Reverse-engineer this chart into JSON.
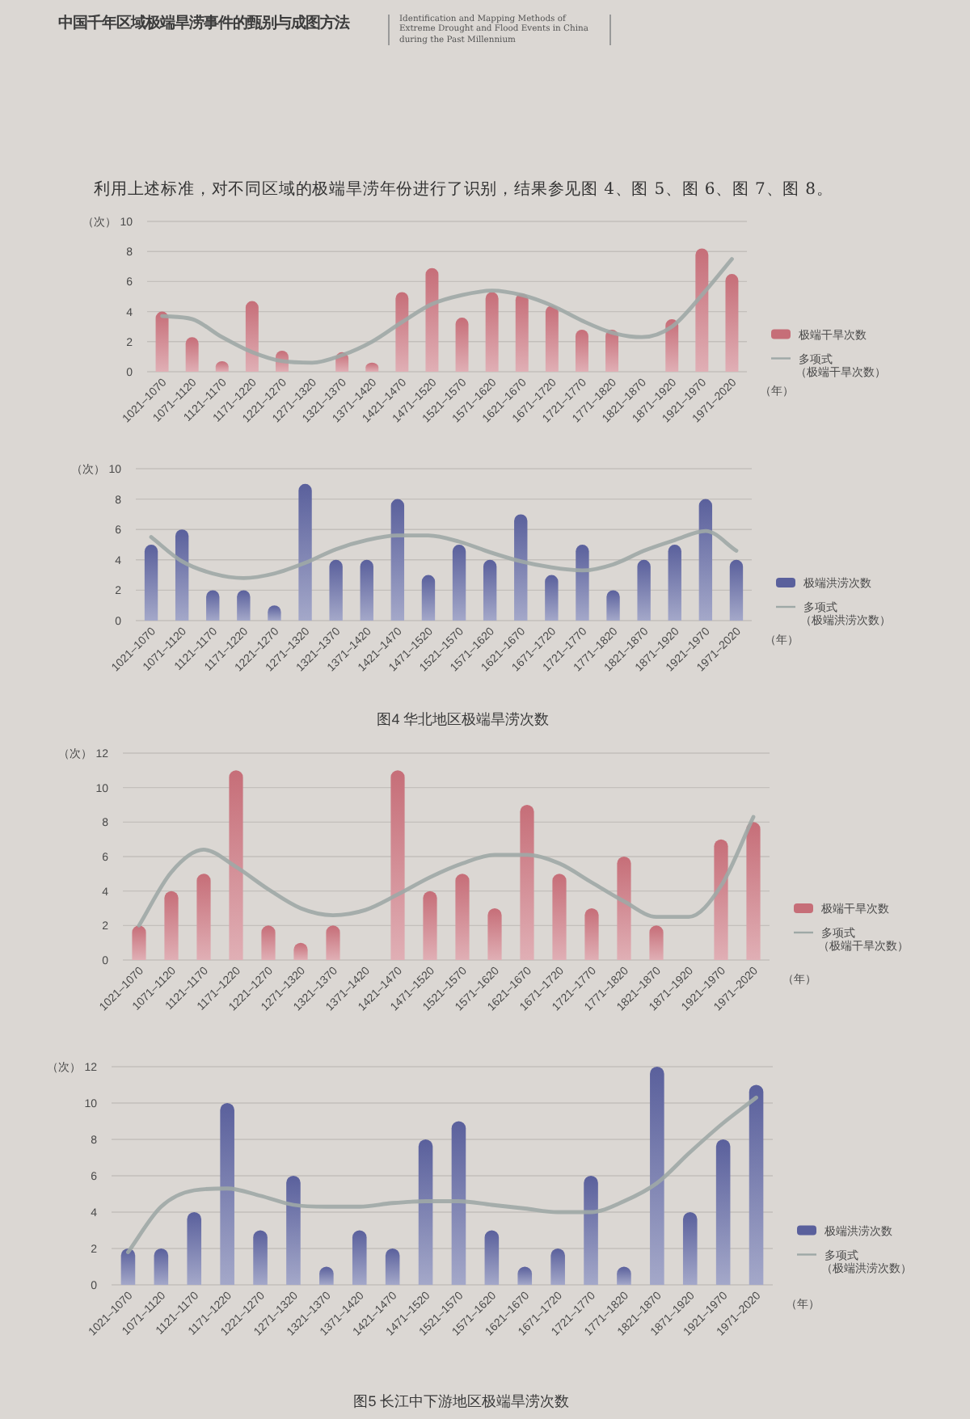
{
  "chart_data": [
    {
      "type": "other",
      "title": "中国千年区域极端旱涝事件的甄别与成图方法",
      "subtitle": "Identification and Mapping Methods of Extreme Drought and Flood Events in China during the Past Millennium",
      "annotations": [
        "利用上述标准，对不同区域的极端旱涝年份进行了识别，结果参见图 4、图 5、图 6、图 7、图 8。"
      ]
    },
    {
      "type": "bar",
      "categories": [
        "1021–1070",
        "1071–1120",
        "1121–1170",
        "1171–1220",
        "1221–1270",
        "1271–1320",
        "1321–1370",
        "1371–1420",
        "1421–1470",
        "1471–1520",
        "1521–1570",
        "1571–1620",
        "1621–1670",
        "1671–1720",
        "1721–1770",
        "1771–1820",
        "1821–1870",
        "1871–1920",
        "1921–1970",
        "1971–2020"
      ],
      "ylim": [
        0,
        10
      ],
      "yticks": [
        0,
        2,
        4,
        6,
        8,
        10
      ],
      "ylabel": "（次）",
      "xlabel": "（年）",
      "grid": "y",
      "legend": "right",
      "series": [
        {
          "name": "极端干旱次数",
          "color": "#c66e78",
          "values": [
            4.0,
            2.3,
            0.7,
            4.7,
            1.4,
            0,
            1.3,
            0.6,
            5.3,
            6.9,
            3.6,
            5.3,
            5.2,
            4.4,
            2.8,
            2.8,
            0,
            3.5,
            8.2,
            6.5
          ]
        },
        {
          "name": "多项式（极端干旱次数）",
          "type": "line",
          "color": "#9ea8a6",
          "values": [
            3.7,
            3.5,
            2.3,
            1.3,
            0.7,
            0.6,
            1.1,
            2.0,
            3.3,
            4.5,
            5.1,
            5.4,
            5.1,
            4.4,
            3.4,
            2.6,
            2.3,
            3.0,
            5.1,
            7.5
          ]
        }
      ]
    },
    {
      "type": "bar",
      "categories": [
        "1021–1070",
        "1071–1120",
        "1121–1170",
        "1171–1220",
        "1221–1270",
        "1271–1320",
        "1321–1370",
        "1371–1420",
        "1421–1470",
        "1471–1520",
        "1521–1570",
        "1571–1620",
        "1621–1670",
        "1671–1720",
        "1721–1770",
        "1771–1820",
        "1821–1870",
        "1871–1920",
        "1921–1970",
        "1971–2020"
      ],
      "ylim": [
        0,
        10
      ],
      "yticks": [
        0,
        2,
        4,
        6,
        8,
        10
      ],
      "ylabel": "（次）",
      "xlabel": "（年）",
      "grid": "y",
      "legend": "right",
      "annotations": [
        "图4 华北地区极端旱涝次数"
      ],
      "series": [
        {
          "name": "极端洪涝次数",
          "color": "#5a609c",
          "values": [
            5,
            6,
            2,
            2,
            1,
            9,
            4,
            4,
            8,
            3,
            5,
            4,
            7,
            3,
            5,
            2,
            4,
            5,
            8,
            4
          ]
        },
        {
          "name": "多项式（极端洪涝次数）",
          "type": "line",
          "color": "#9ea8a6",
          "values": [
            5.5,
            3.9,
            3.1,
            2.8,
            3.1,
            3.8,
            4.7,
            5.3,
            5.6,
            5.6,
            5.2,
            4.5,
            3.9,
            3.5,
            3.3,
            3.7,
            4.6,
            5.3,
            5.9,
            4.6
          ]
        }
      ]
    },
    {
      "type": "bar",
      "categories": [
        "1021–1070",
        "1071–1120",
        "1121–1170",
        "1171–1220",
        "1221–1270",
        "1271–1320",
        "1321–1370",
        "1371–1420",
        "1421–1470",
        "1471–1520",
        "1521–1570",
        "1571–1620",
        "1621–1670",
        "1671–1720",
        "1721–1770",
        "1771–1820",
        "1821–1870",
        "1871–1920",
        "1921–1970",
        "1971–2020"
      ],
      "ylim": [
        0,
        12
      ],
      "yticks": [
        0,
        2,
        4,
        6,
        8,
        10,
        12
      ],
      "ylabel": "（次）",
      "xlabel": "（年）",
      "grid": "y",
      "legend": "right",
      "series": [
        {
          "name": "极端干旱次数",
          "color": "#c66e78",
          "values": [
            2,
            4,
            5,
            11,
            2,
            1,
            2,
            0,
            11,
            4,
            5,
            3,
            9,
            5,
            3,
            6,
            2,
            0,
            7,
            8
          ]
        },
        {
          "name": "多项式（极端干旱次数）",
          "type": "line",
          "color": "#9ea8a6",
          "values": [
            2.0,
            5.1,
            6.4,
            5.4,
            4.1,
            3.0,
            2.6,
            2.9,
            3.8,
            4.8,
            5.6,
            6.1,
            6.1,
            5.6,
            4.5,
            3.4,
            2.5,
            2.5,
            4.3,
            8.3
          ]
        }
      ]
    },
    {
      "type": "bar",
      "categories": [
        "1021–1070",
        "1071–1120",
        "1121–1170",
        "1171–1220",
        "1221–1270",
        "1271–1320",
        "1321–1370",
        "1371–1420",
        "1421–1470",
        "1471–1520",
        "1521–1570",
        "1571–1620",
        "1621–1670",
        "1671–1720",
        "1721–1770",
        "1771–1820",
        "1821–1870",
        "1871–1920",
        "1921–1970",
        "1971–2020"
      ],
      "ylim": [
        0,
        12
      ],
      "yticks": [
        0,
        2,
        4,
        6,
        8,
        10,
        12
      ],
      "ylabel": "（次）",
      "xlabel": "（年）",
      "grid": "y",
      "legend": "right",
      "annotations": [
        "图5 长江中下游地区极端旱涝次数"
      ],
      "series": [
        {
          "name": "极端洪涝次数",
          "color": "#5a609c",
          "values": [
            2,
            2,
            4,
            10,
            3,
            6,
            1,
            3,
            2,
            8,
            9,
            3,
            1,
            2,
            6,
            1,
            12,
            4,
            8,
            11
          ]
        },
        {
          "name": "多项式（极端洪涝次数）",
          "type": "line",
          "color": "#9ea8a6",
          "values": [
            1.8,
            4.3,
            5.2,
            5.3,
            4.9,
            4.4,
            4.3,
            4.3,
            4.5,
            4.6,
            4.6,
            4.4,
            4.2,
            4.0,
            4.0,
            4.6,
            5.6,
            7.3,
            8.9,
            10.3
          ]
        }
      ]
    }
  ]
}
